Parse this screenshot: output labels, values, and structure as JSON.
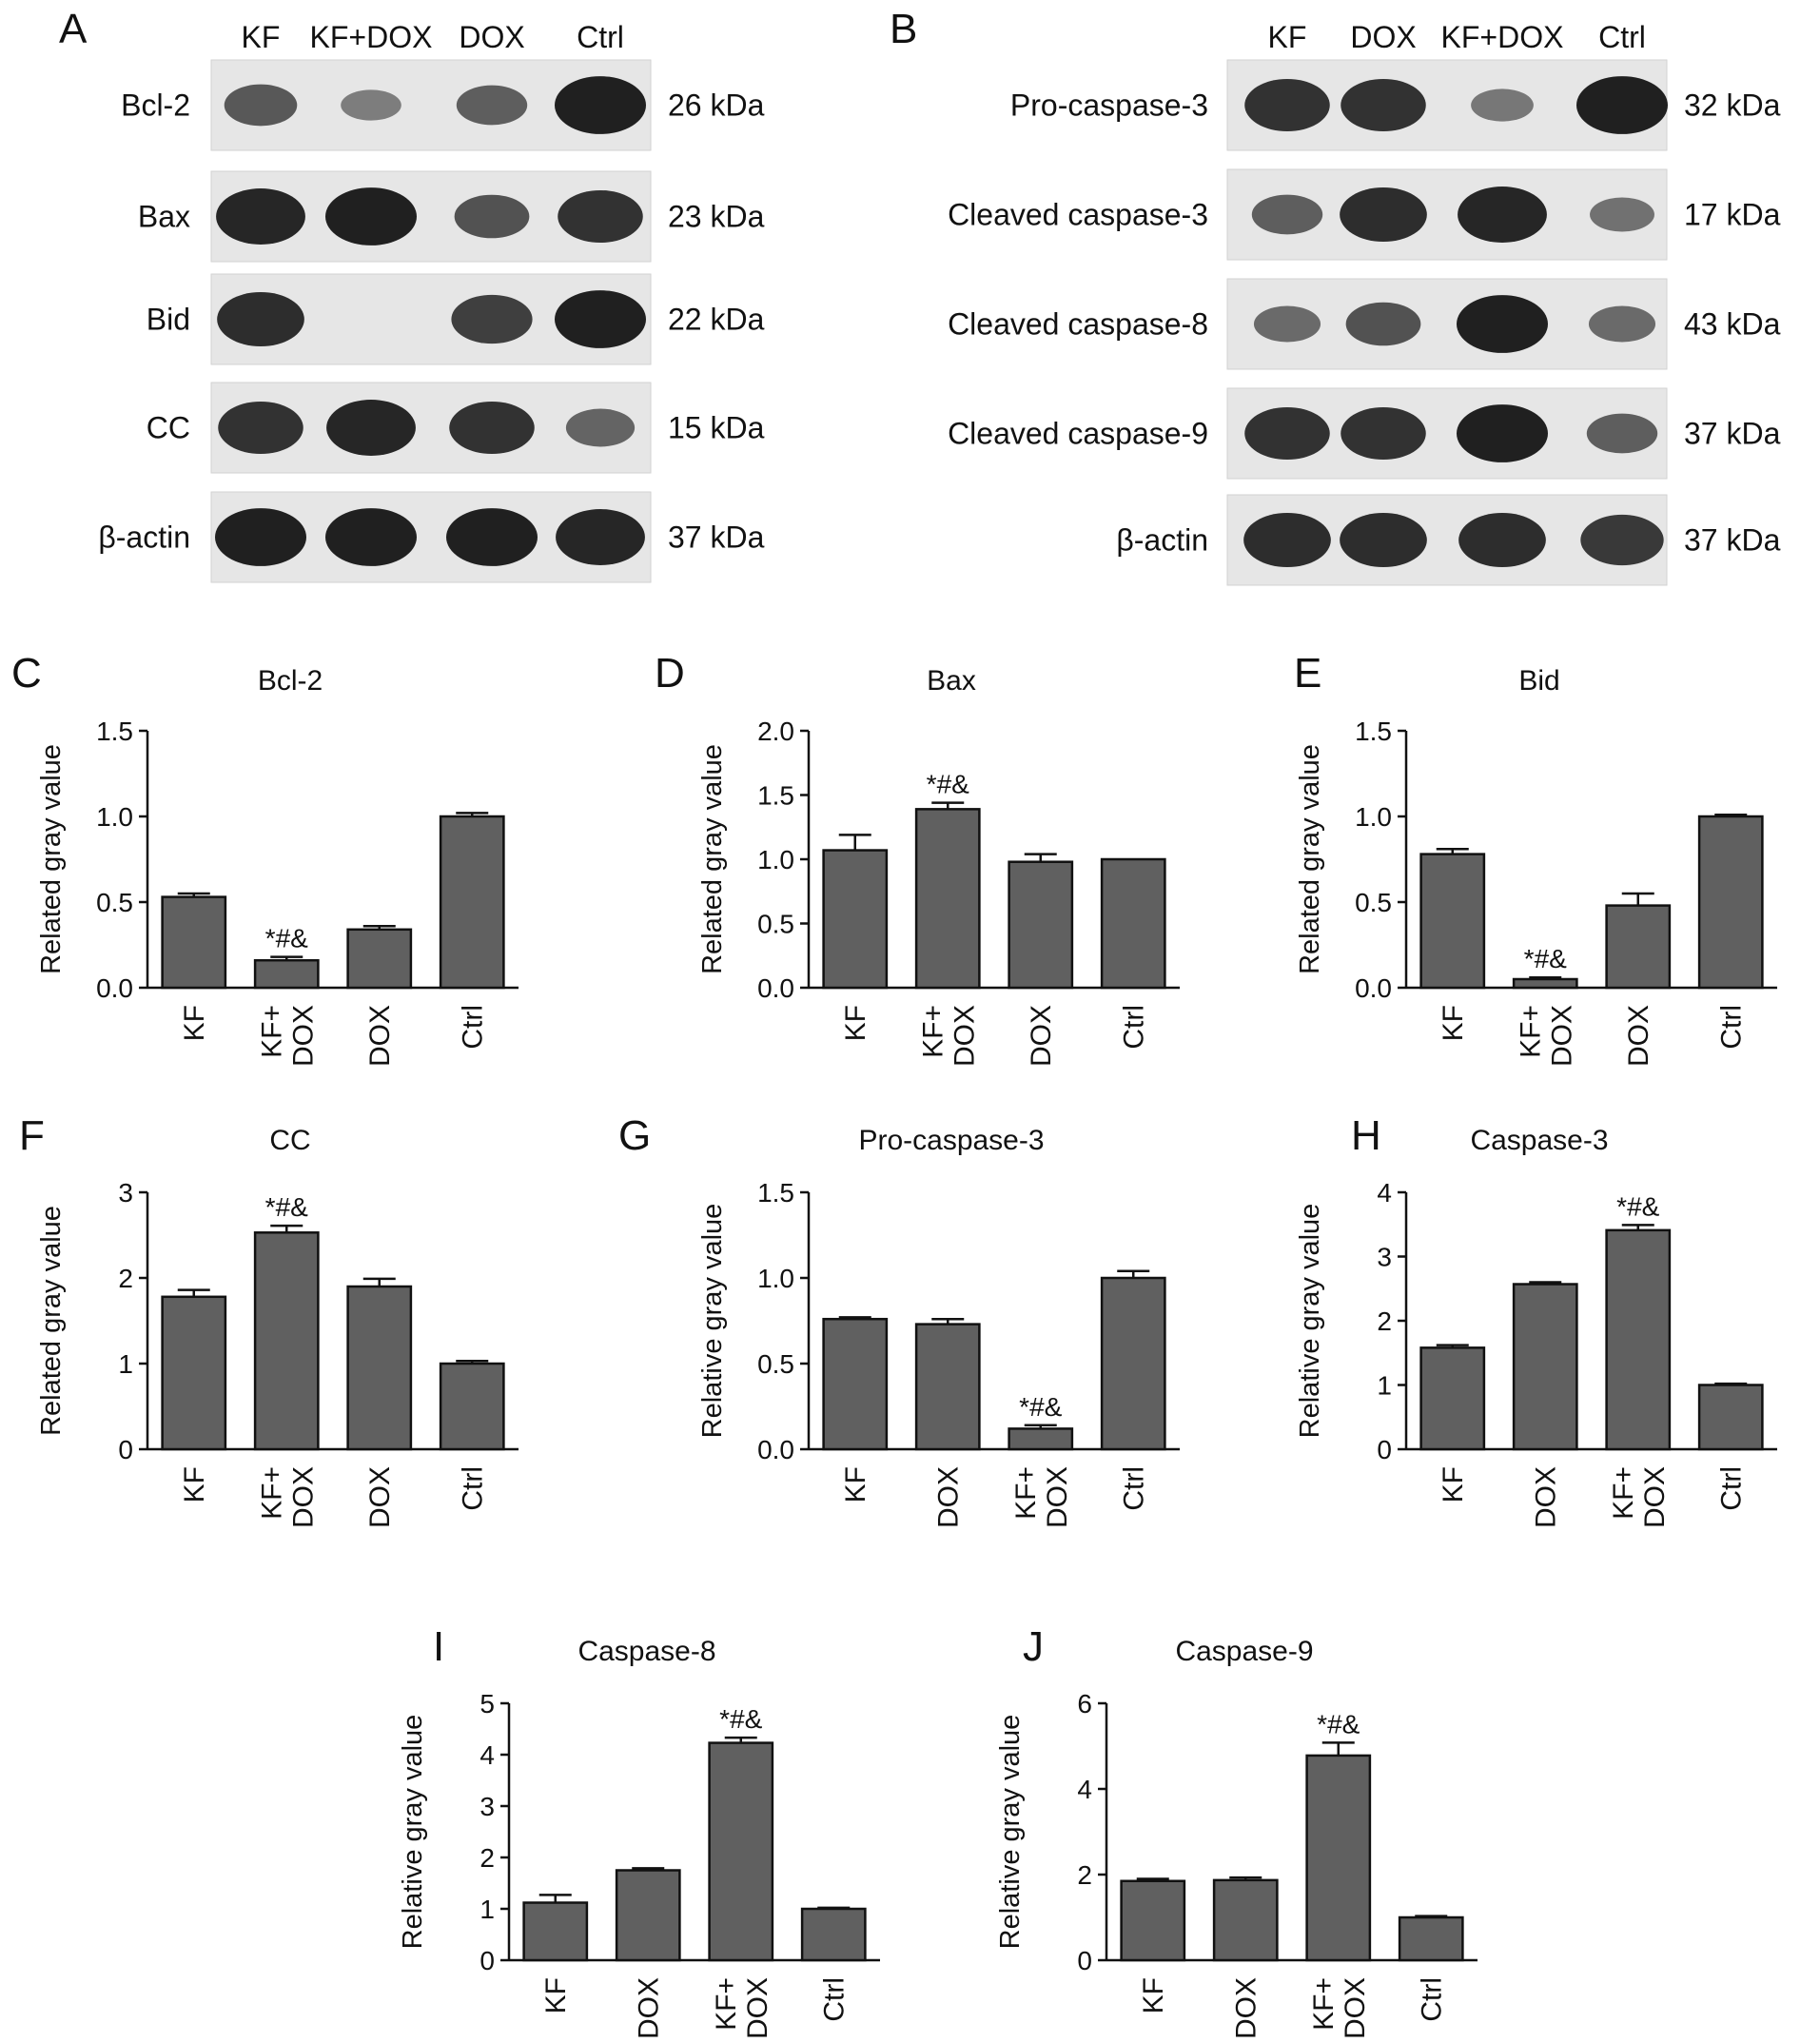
{
  "panel_a": {
    "label": "A",
    "lanes": [
      "KF",
      "KF+DOX",
      "DOX",
      "Ctrl"
    ],
    "blots": [
      {
        "name": "Bcl-2",
        "kda": "26 kDa",
        "bands": [
          0.55,
          0.25,
          0.5,
          1.0
        ]
      },
      {
        "name": "Bax",
        "kda": "23 kDa",
        "bands": [
          0.95,
          1.0,
          0.6,
          0.85
        ]
      },
      {
        "name": "Bid",
        "kda": "22 kDa",
        "bands": [
          0.9,
          0.0,
          0.75,
          1.0
        ]
      },
      {
        "name": "CC",
        "kda": "15 kDa",
        "bands": [
          0.85,
          0.95,
          0.85,
          0.45
        ]
      },
      {
        "name": "β-actin",
        "kda": "37 kDa",
        "bands": [
          1.0,
          1.0,
          1.0,
          0.95
        ]
      }
    ]
  },
  "panel_b": {
    "label": "B",
    "lanes": [
      "KF",
      "DOX",
      "KF+DOX",
      "Ctrl"
    ],
    "blots": [
      {
        "name": "Pro-caspase-3",
        "kda": "32 kDa",
        "bands": [
          0.85,
          0.85,
          0.3,
          1.0
        ]
      },
      {
        "name": "Cleaved caspase-3",
        "kda": "17 kDa",
        "bands": [
          0.5,
          0.9,
          0.95,
          0.35
        ]
      },
      {
        "name": "Cleaved caspase-8",
        "kda": "43 kDa",
        "bands": [
          0.4,
          0.6,
          1.0,
          0.4
        ]
      },
      {
        "name": "Cleaved caspase-9",
        "kda": "37 kDa",
        "bands": [
          0.85,
          0.85,
          1.0,
          0.5
        ]
      },
      {
        "name": "β-actin",
        "kda": "37 kDa",
        "bands": [
          0.9,
          0.9,
          0.9,
          0.8
        ]
      }
    ]
  },
  "chart_data": [
    {
      "panel": "C",
      "type": "bar",
      "title": "Bcl-2",
      "ylabel": "Related gray value",
      "categories": [
        "KF",
        "KF+\nDOX",
        "DOX",
        "Ctrl"
      ],
      "values": [
        0.53,
        0.16,
        0.34,
        1.0
      ],
      "errors": [
        0.02,
        0.02,
        0.02,
        0.02
      ],
      "ylim": [
        0,
        1.5
      ],
      "yticks": [
        "0.0",
        "0.5",
        "1.0",
        "1.5"
      ],
      "annotations": [
        {
          "category": 1,
          "text": "*#&"
        }
      ]
    },
    {
      "panel": "D",
      "type": "bar",
      "title": "Bax",
      "ylabel": "Related gray value",
      "categories": [
        "KF",
        "KF+\nDOX",
        "DOX",
        "Ctrl"
      ],
      "values": [
        1.07,
        1.39,
        0.98,
        1.0
      ],
      "errors": [
        0.12,
        0.05,
        0.06,
        0.0
      ],
      "ylim": [
        0,
        2.0
      ],
      "yticks": [
        "0.0",
        "0.5",
        "1.0",
        "1.5",
        "2.0"
      ],
      "annotations": [
        {
          "category": 1,
          "text": "*#&"
        }
      ]
    },
    {
      "panel": "E",
      "type": "bar",
      "title": "Bid",
      "ylabel": "Related gray value",
      "categories": [
        "KF",
        "KF+\nDOX",
        "DOX",
        "Ctrl"
      ],
      "values": [
        0.78,
        0.05,
        0.48,
        1.0
      ],
      "errors": [
        0.03,
        0.01,
        0.07,
        0.01
      ],
      "ylim": [
        0,
        1.5
      ],
      "yticks": [
        "0.0",
        "0.5",
        "1.0",
        "1.5"
      ],
      "annotations": [
        {
          "category": 1,
          "text": "*#&"
        }
      ]
    },
    {
      "panel": "F",
      "type": "bar",
      "title": "CC",
      "ylabel": "Related gray value",
      "categories": [
        "KF",
        "KF+\nDOX",
        "DOX",
        "Ctrl"
      ],
      "values": [
        1.78,
        2.53,
        1.9,
        1.0
      ],
      "errors": [
        0.08,
        0.08,
        0.09,
        0.03
      ],
      "ylim": [
        0,
        3
      ],
      "yticks": [
        "0",
        "1",
        "2",
        "3"
      ],
      "annotations": [
        {
          "category": 1,
          "text": "*#&"
        }
      ]
    },
    {
      "panel": "G",
      "type": "bar",
      "title": "Pro-caspase-3",
      "ylabel": "Relative gray value",
      "categories": [
        "KF",
        "DOX",
        "KF+\nDOX",
        "Ctrl"
      ],
      "values": [
        0.76,
        0.73,
        0.12,
        1.0
      ],
      "errors": [
        0.01,
        0.03,
        0.02,
        0.04
      ],
      "ylim": [
        0,
        1.5
      ],
      "yticks": [
        "0.0",
        "0.5",
        "1.0",
        "1.5"
      ],
      "annotations": [
        {
          "category": 2,
          "text": "*#&"
        }
      ]
    },
    {
      "panel": "H",
      "type": "bar",
      "title": "Caspase-3",
      "ylabel": "Relative gray value",
      "categories": [
        "KF",
        "DOX",
        "KF+\nDOX",
        "Ctrl"
      ],
      "values": [
        1.58,
        2.57,
        3.41,
        1.0
      ],
      "errors": [
        0.04,
        0.03,
        0.08,
        0.02
      ],
      "ylim": [
        0,
        4
      ],
      "yticks": [
        "0",
        "1",
        "2",
        "3",
        "4"
      ],
      "annotations": [
        {
          "category": 2,
          "text": "*#&"
        }
      ]
    },
    {
      "panel": "I",
      "type": "bar",
      "title": "Caspase-8",
      "ylabel": "Relative gray value",
      "categories": [
        "KF",
        "DOX",
        "KF+\nDOX",
        "Ctrl"
      ],
      "values": [
        1.12,
        1.75,
        4.23,
        1.0
      ],
      "errors": [
        0.15,
        0.04,
        0.1,
        0.02
      ],
      "ylim": [
        0,
        5
      ],
      "yticks": [
        "0",
        "1",
        "2",
        "3",
        "4",
        "5"
      ],
      "annotations": [
        {
          "category": 2,
          "text": "*#&"
        }
      ]
    },
    {
      "panel": "J",
      "type": "bar",
      "title": "Caspase-9",
      "ylabel": "Relative gray value",
      "categories": [
        "KF",
        "DOX",
        "KF+\nDOX",
        "Ctrl"
      ],
      "values": [
        1.85,
        1.87,
        4.78,
        1.0
      ],
      "errors": [
        0.05,
        0.06,
        0.3,
        0.03
      ],
      "ylim": [
        0,
        6
      ],
      "yticks": [
        "0",
        "2",
        "4",
        "6"
      ],
      "annotations": [
        {
          "category": 2,
          "text": "*#&"
        }
      ]
    }
  ]
}
